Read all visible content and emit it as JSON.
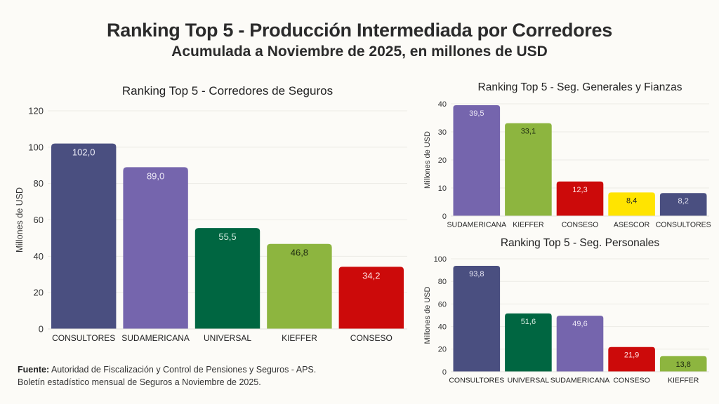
{
  "header": {
    "title": "Ranking Top 5 - Producción Intermediada por Corredores",
    "subtitle": "Acumulada a Noviembre de 2025, en millones de USD"
  },
  "source": {
    "label": "Fuente:",
    "line1": "Autoridad de Fiscalización y Control de Pensiones y Seguros - APS.",
    "line2": "Boletín estadístico mensual de Seguros a Noviembre de 2025."
  },
  "colors": {
    "CONSULTORES": "#4a4f80",
    "SUDAMERICANA": "#7565ad",
    "UNIVERSAL": "#006641",
    "KIEFFER": "#8db53f",
    "CONSESO": "#cc0a0a",
    "ASESCOR": "#ffe400"
  },
  "chart_data": [
    {
      "id": "corredores",
      "type": "bar",
      "title": "Ranking Top 5 - Corredores de Seguros",
      "xlabel": "",
      "ylabel": "Millones de USD",
      "ylim": [
        0,
        120
      ],
      "yticks": [
        0,
        20,
        40,
        60,
        80,
        100,
        120
      ],
      "grid": true,
      "categories": [
        "CONSULTORES",
        "SUDAMERICANA",
        "UNIVERSAL",
        "KIEFFER",
        "CONSESO"
      ],
      "values": [
        102.0,
        89.0,
        55.5,
        46.8,
        34.2
      ],
      "labels": [
        "102,0",
        "89,0",
        "55,5",
        "46,8",
        "34,2"
      ]
    },
    {
      "id": "generales",
      "type": "bar",
      "title": "Ranking Top 5 - Seg. Generales y Fianzas",
      "xlabel": "",
      "ylabel": "Millones de USD",
      "ylim": [
        0,
        40
      ],
      "yticks": [
        0,
        10,
        20,
        30,
        40
      ],
      "grid": true,
      "categories": [
        "SUDAMERICANA",
        "KIEFFER",
        "CONSESO",
        "ASESCOR",
        "CONSULTORES"
      ],
      "values": [
        39.5,
        33.1,
        12.3,
        8.4,
        8.2
      ],
      "labels": [
        "39,5",
        "33,1",
        "12,3",
        "8,4",
        "8,2"
      ]
    },
    {
      "id": "personales",
      "type": "bar",
      "title": "Ranking Top 5 - Seg. Personales",
      "xlabel": "",
      "ylabel": "Millones de USD",
      "ylim": [
        0,
        100
      ],
      "yticks": [
        0,
        20,
        40,
        60,
        80,
        100
      ],
      "grid": true,
      "categories": [
        "CONSULTORES",
        "UNIVERSAL",
        "SUDAMERICANA",
        "CONSESO",
        "KIEFFER"
      ],
      "values": [
        93.8,
        51.6,
        49.6,
        21.9,
        13.8
      ],
      "labels": [
        "93,8",
        "51,6",
        "49,6",
        "21,9",
        "13,8"
      ]
    }
  ]
}
